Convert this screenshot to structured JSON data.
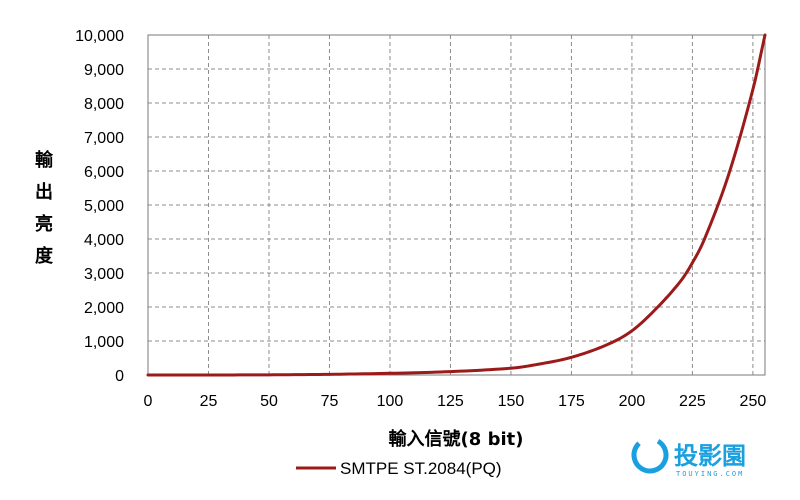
{
  "chart_data": {
    "type": "line",
    "xlabel": "輸入信號(8 bit)",
    "ylabel": "輸出亮度",
    "xlim": [
      0,
      255
    ],
    "ylim": [
      0,
      10000
    ],
    "x_ticks": [
      0,
      25,
      50,
      75,
      100,
      125,
      150,
      175,
      200,
      225,
      250
    ],
    "x_tick_labels": [
      "0",
      "25",
      "50",
      "75",
      "100",
      "125",
      "150",
      "175",
      "200",
      "225",
      "250"
    ],
    "y_ticks": [
      0,
      1000,
      2000,
      3000,
      4000,
      5000,
      6000,
      7000,
      8000,
      9000,
      10000
    ],
    "y_tick_labels": [
      "0",
      "1,000",
      "2,000",
      "3,000",
      "4,000",
      "5,000",
      "6,000",
      "7,000",
      "8,000",
      "9,000",
      "10,000"
    ],
    "grid": true,
    "legend_position": "bottom",
    "series": [
      {
        "name": "SMTPE ST.2084(PQ)",
        "color": "#9b1b1b",
        "x": [
          0,
          25,
          50,
          75,
          100,
          125,
          150,
          160,
          175,
          190,
          200,
          210,
          220,
          225,
          230,
          240,
          250,
          255
        ],
        "y": [
          0,
          1,
          5,
          20,
          50,
          100,
          200,
          300,
          520,
          900,
          1300,
          1950,
          2750,
          3300,
          4000,
          5900,
          8400,
          10000
        ]
      }
    ]
  },
  "watermark": {
    "text": "投影園",
    "subtext": "TOUYING.COM",
    "color": "#1aa0e0"
  }
}
